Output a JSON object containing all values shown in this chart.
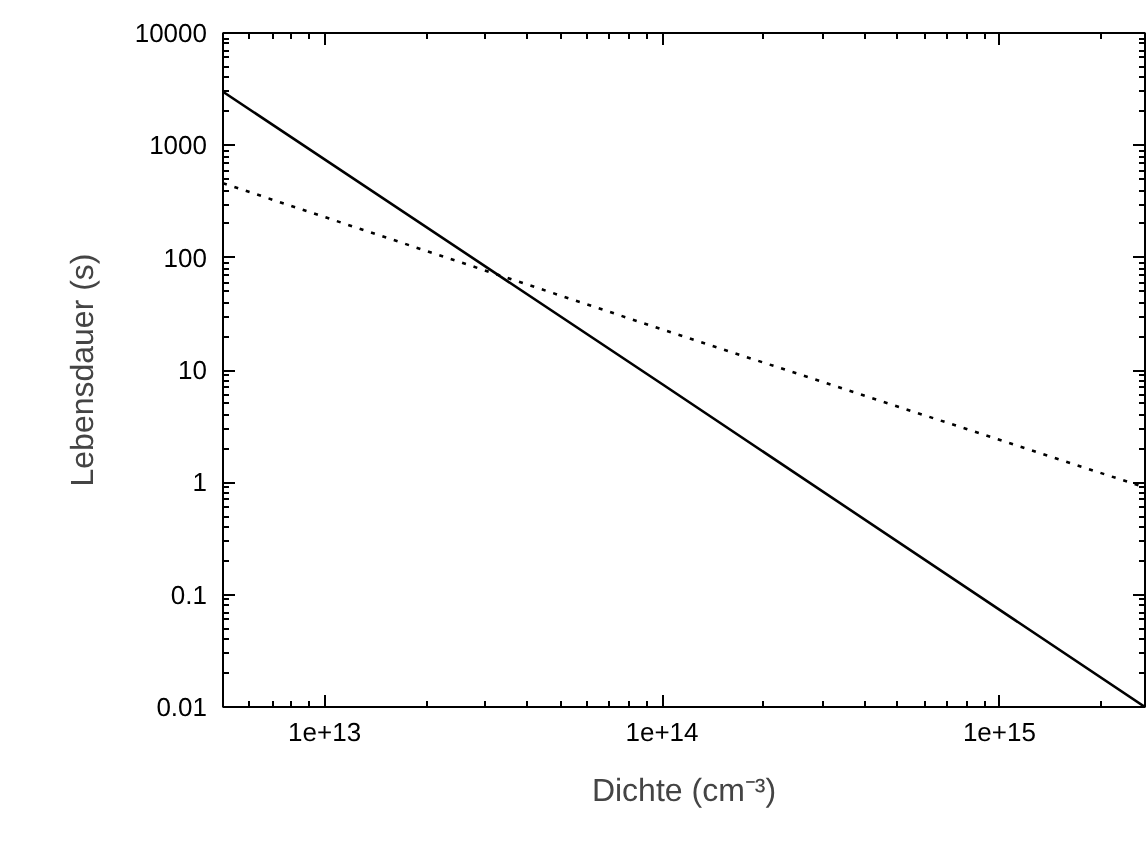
{
  "chart_data": {
    "type": "line",
    "xlabel": "Dichte (cm⁻³)",
    "ylabel": "Lebensdauer (s)",
    "log": "xy",
    "grid": false,
    "marker": "none",
    "xlim": [
      5000000000000.0,
      2700000000000000.0
    ],
    "ylim": [
      0.01,
      10000
    ],
    "xticks": [
      {
        "value": 10000000000000.0,
        "label": "1e+13"
      },
      {
        "value": 100000000000000.0,
        "label": "1e+14"
      },
      {
        "value": 1000000000000000.0,
        "label": "1e+15"
      }
    ],
    "yticks": [
      0.01,
      0.1,
      1,
      10,
      100,
      1000,
      10000
    ],
    "series": [
      {
        "color": "#000000",
        "line_style": "solid",
        "x": [
          5000000000000.0,
          100000000000000.0,
          2700000000000000.0
        ],
        "values": [
          3000,
          7.5,
          0.01
        ]
      },
      {
        "color": "#000000",
        "line_style": "dotted",
        "x": [
          5000000000000.0,
          100000000000000.0,
          2700000000000000.0
        ],
        "values": [
          460,
          23,
          0.9
        ]
      }
    ]
  }
}
